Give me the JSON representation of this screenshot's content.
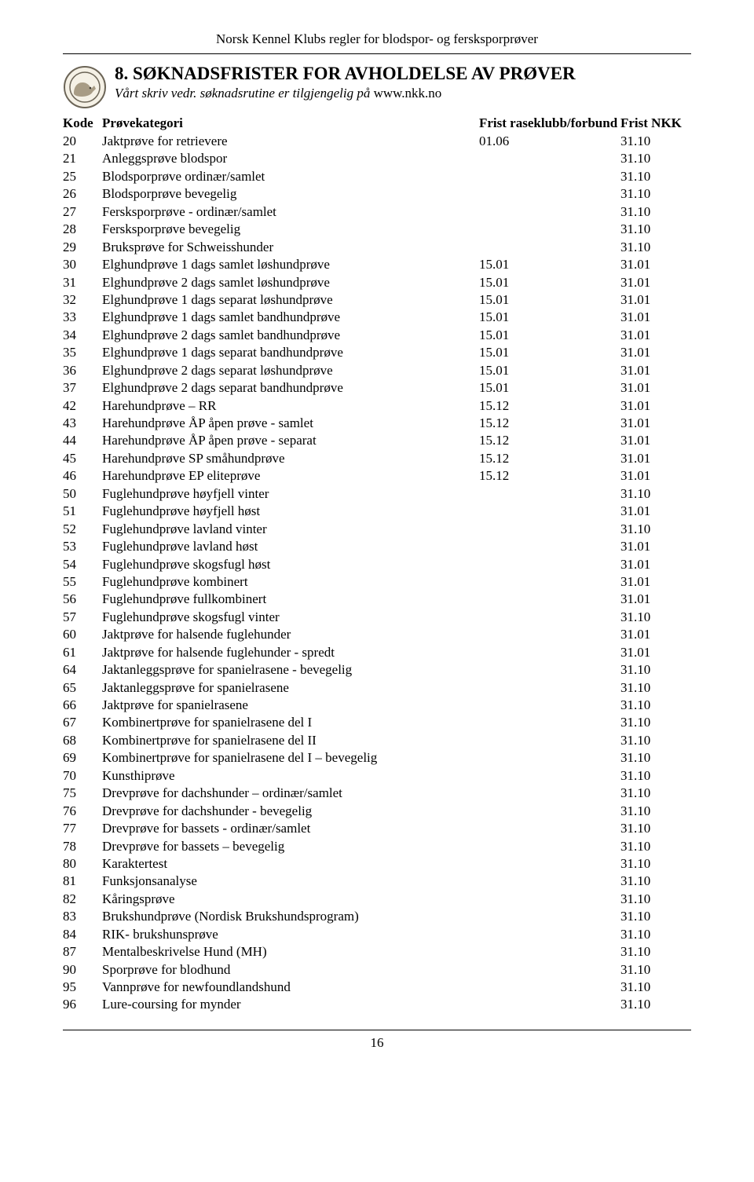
{
  "header_text": "Norsk Kennel Klubs regler for blodspor- og fersksporprøver",
  "section_title": "8. SØKNADSFRISTER FOR AVHOLDELSE AV PRØVER",
  "subtitle_italic": "Vårt skriv vedr. søknadsrutine er tilgjengelig på ",
  "subtitle_url": "www.nkk.no",
  "table_header": {
    "kode": "Kode",
    "kategori": "Prøvekategori",
    "frist1": "Frist raseklubb/forbund",
    "frist2": "Frist NKK"
  },
  "rows": [
    {
      "kode": "20",
      "kategori": "Jaktprøve for retrievere",
      "f1": "01.06",
      "f2": "31.10"
    },
    {
      "kode": "21",
      "kategori": "Anleggsprøve  blodspor",
      "f1": "",
      "f2": "31.10"
    },
    {
      "kode": "25",
      "kategori": "Blodsporprøve ordinær/samlet",
      "f1": "",
      "f2": "31.10"
    },
    {
      "kode": "26",
      "kategori": "Blodsporprøve bevegelig",
      "f1": "",
      "f2": "31.10"
    },
    {
      "kode": "27",
      "kategori": "Fersksporprøve - ordinær/samlet",
      "f1": "",
      "f2": "31.10"
    },
    {
      "kode": "28",
      "kategori": "Fersksporprøve bevegelig",
      "f1": "",
      "f2": "31.10"
    },
    {
      "kode": "29",
      "kategori": "Bruksprøve for Schweisshunder",
      "f1": "",
      "f2": "31.10"
    },
    {
      "kode": "30",
      "kategori": "Elghundprøve 1 dags samlet løshundprøve",
      "f1": "15.01",
      "f2": "31.01"
    },
    {
      "kode": "31",
      "kategori": "Elghundprøve 2 dags samlet løshundprøve",
      "f1": "15.01",
      "f2": "31.01"
    },
    {
      "kode": "32",
      "kategori": "Elghundprøve 1 dags separat løshundprøve",
      "f1": "15.01",
      "f2": "31.01"
    },
    {
      "kode": "33",
      "kategori": "Elghundprøve 1 dags samlet bandhundprøve",
      "f1": "15.01",
      "f2": "31.01"
    },
    {
      "kode": "34",
      "kategori": "Elghundprøve 2 dags samlet bandhundprøve",
      "f1": "15.01",
      "f2": "31.01"
    },
    {
      "kode": "35",
      "kategori": "Elghundprøve 1 dags separat bandhundprøve",
      "f1": "15.01",
      "f2": "31.01"
    },
    {
      "kode": "36",
      "kategori": "Elghundprøve 2 dags separat løshundprøve",
      "f1": "15.01",
      "f2": "31.01"
    },
    {
      "kode": "37",
      "kategori": "Elghundprøve 2 dags separat bandhundprøve",
      "f1": "15.01",
      "f2": "31.01"
    },
    {
      "kode": "42",
      "kategori": "Harehundprøve – RR",
      "f1": "15.12",
      "f2": "31.01"
    },
    {
      "kode": "43",
      "kategori": "Harehundprøve ÅP åpen prøve - samlet",
      "f1": "15.12",
      "f2": "31.01"
    },
    {
      "kode": "44",
      "kategori": "Harehundprøve ÅP åpen prøve - separat",
      "f1": "15.12",
      "f2": "31.01"
    },
    {
      "kode": "45",
      "kategori": "Harehundprøve SP småhundprøve",
      "f1": "15.12",
      "f2": "31.01"
    },
    {
      "kode": "46",
      "kategori": "Harehundprøve EP eliteprøve",
      "f1": "15.12",
      "f2": "31.01"
    },
    {
      "kode": "50",
      "kategori": "Fuglehundprøve høyfjell vinter",
      "f1": "",
      "f2": "31.10"
    },
    {
      "kode": "51",
      "kategori": "Fuglehundprøve høyfjell høst",
      "f1": "",
      "f2": "31.01"
    },
    {
      "kode": "52",
      "kategori": "Fuglehundprøve lavland vinter",
      "f1": "",
      "f2": "31.10"
    },
    {
      "kode": "53",
      "kategori": "Fuglehundprøve lavland høst",
      "f1": "",
      "f2": "31.01"
    },
    {
      "kode": "54",
      "kategori": "Fuglehundprøve skogsfugl høst",
      "f1": "",
      "f2": "31.01"
    },
    {
      "kode": "55",
      "kategori": "Fuglehundprøve kombinert",
      "f1": "",
      "f2": "31.01"
    },
    {
      "kode": "56",
      "kategori": "Fuglehundprøve fullkombinert",
      "f1": "",
      "f2": "31.01"
    },
    {
      "kode": "57",
      "kategori": "Fuglehundprøve skogsfugl    vinter",
      "f1": "",
      "f2": "31.10"
    },
    {
      "kode": "60",
      "kategori": "Jaktprøve for halsende fuglehunder",
      "f1": "",
      "f2": "31.01"
    },
    {
      "kode": "61",
      "kategori": "Jaktprøve for halsende fuglehunder - spredt",
      "f1": "",
      "f2": "31.01"
    },
    {
      "kode": "64",
      "kategori": "Jaktanleggsprøve for spanielrasene - bevegelig",
      "f1": "",
      "f2": "31.10"
    },
    {
      "kode": "65",
      "kategori": "Jaktanleggsprøve for spanielrasene",
      "f1": "",
      "f2": "31.10"
    },
    {
      "kode": "66",
      "kategori": "Jaktprøve for spanielrasene",
      "f1": "",
      "f2": "31.10"
    },
    {
      "kode": "67",
      "kategori": "Kombinertprøve for spanielrasene del I",
      "f1": "",
      "f2": "31.10"
    },
    {
      "kode": "68",
      "kategori": "Kombinertprøve for spanielrasene del II",
      "f1": "",
      "f2": "31.10"
    },
    {
      "kode": "69",
      "kategori": "Kombinertprøve for spanielrasene del I – bevegelig",
      "f1": "",
      "f2": "31.10"
    },
    {
      "kode": "70",
      "kategori": "Kunsthiprøve",
      "f1": "",
      "f2": "31.10"
    },
    {
      "kode": "75",
      "kategori": "Drevprøve for dachshunder – ordinær/samlet",
      "f1": "",
      "f2": "31.10"
    },
    {
      "kode": "76",
      "kategori": "Drevprøve for dachshunder - bevegelig",
      "f1": "",
      "f2": "31.10"
    },
    {
      "kode": "77",
      "kategori": "Drevprøve for bassets - ordinær/samlet",
      "f1": "",
      "f2": "31.10"
    },
    {
      "kode": "78",
      "kategori": "Drevprøve for bassets – bevegelig",
      "f1": "",
      "f2": "31.10"
    },
    {
      "kode": "80",
      "kategori": "Karaktertest",
      "f1": "",
      "f2": "31.10"
    },
    {
      "kode": "81",
      "kategori": "Funksjonsanalyse",
      "f1": "",
      "f2": "31.10"
    },
    {
      "kode": "82",
      "kategori": "Kåringsprøve",
      "f1": "",
      "f2": "31.10"
    },
    {
      "kode": "83",
      "kategori": "Brukshundprøve (Nordisk Brukshundsprogram)",
      "f1": "",
      "f2": "31.10"
    },
    {
      "kode": "84",
      "kategori": "RIK- brukshunsprøve",
      "f1": "",
      "f2": "31.10"
    },
    {
      "kode": "87",
      "kategori": "Mentalbeskrivelse Hund (MH)",
      "f1": "",
      "f2": "31.10"
    },
    {
      "kode": "90",
      "kategori": "Sporprøve for blodhund",
      "f1": "",
      "f2": "31.10"
    },
    {
      "kode": "95",
      "kategori": "Vannprøve for newfoundlandshund",
      "f1": "",
      "f2": "31.10"
    },
    {
      "kode": "96",
      "kategori": "Lure-coursing for mynder",
      "f1": "",
      "f2": "31.10"
    }
  ],
  "page_number": "16"
}
